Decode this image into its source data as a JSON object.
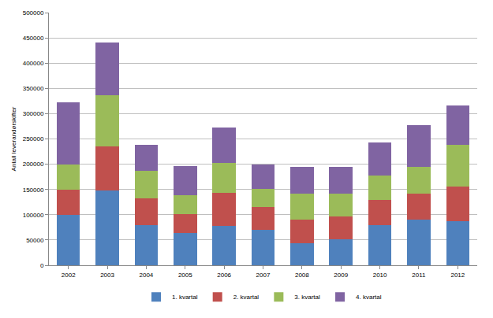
{
  "chart_data": {
    "type": "bar",
    "y_label": "Antall leverandørskifter",
    "categories": [
      "2002",
      "2003",
      "2004",
      "2005",
      "2006",
      "2007",
      "2008",
      "2009",
      "2010",
      "2011",
      "2012"
    ],
    "series": [
      {
        "name": "1. kvartal",
        "color": "#4F81BD",
        "values": [
          100000,
          148000,
          79000,
          64000,
          78000,
          70000,
          44000,
          51000,
          80000,
          90000,
          88000
        ]
      },
      {
        "name": "2. kvartal",
        "color": "#C0504D",
        "values": [
          50000,
          87000,
          54000,
          38000,
          66000,
          46000,
          47000,
          46000,
          50000,
          51000,
          68000
        ]
      },
      {
        "name": "3. kvartal",
        "color": "#9BBB59",
        "values": [
          50000,
          102000,
          54000,
          37000,
          58000,
          35000,
          51000,
          44000,
          47000,
          53000,
          82000
        ]
      },
      {
        "name": "4. kvartal",
        "color": "#8064A2",
        "values": [
          122000,
          104000,
          52000,
          58000,
          71000,
          48000,
          52000,
          54000,
          66000,
          83000,
          78000
        ]
      }
    ],
    "ylim": [
      0,
      500000
    ],
    "yticks": [
      0,
      50000,
      100000,
      150000,
      200000,
      250000,
      300000,
      350000,
      400000,
      450000,
      500000
    ],
    "stacked": true,
    "grid": true,
    "legend": "bottom"
  }
}
